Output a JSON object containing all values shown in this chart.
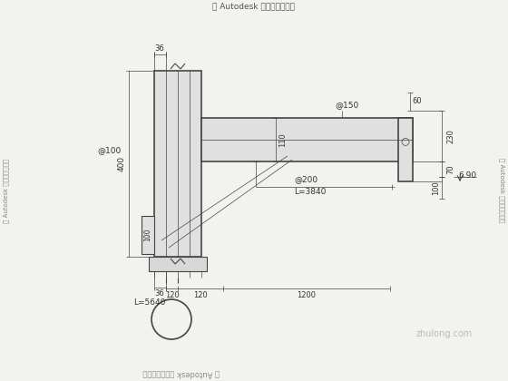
{
  "bg_color": "#f2f2ee",
  "line_color": "#444444",
  "text_color": "#333333",
  "title_top": "由 Autodesk 教育版产品制作",
  "title_bottom": "由 Autodesk 教育版产品制作",
  "side_text_left": "由 Autodesk 教育版产品制作",
  "side_text_right": "由 Autodesk 教育版产品制作",
  "watermark": "zhulong.com",
  "dim_36_top": "36",
  "dim_36_bot": "36",
  "dim_400": "400",
  "dim_at100": "@100",
  "dim_at150": "@150",
  "dim_at200": "@200",
  "dim_L5640": "L=5640",
  "dim_L3840": "L=3840",
  "dim_110": "110",
  "dim_100v": "100",
  "dim_60": "60",
  "dim_230": "230",
  "dim_70": "70",
  "dim_100r": "100",
  "dim_690": "6.90",
  "dim_120_1": "120",
  "dim_120_2": "120",
  "dim_1200": "1200"
}
